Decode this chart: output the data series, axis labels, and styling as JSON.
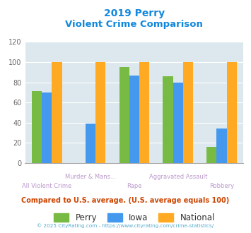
{
  "title_line1": "2019 Perry",
  "title_line2": "Violent Crime Comparison",
  "categories": [
    "All Violent Crime",
    "Murder & Mans...",
    "Rape",
    "Aggravated Assault",
    "Robbery"
  ],
  "perry": [
    71,
    0,
    95,
    86,
    16
  ],
  "iowa": [
    70,
    39,
    87,
    80,
    34
  ],
  "national": [
    100,
    100,
    100,
    100,
    100
  ],
  "perry_color": "#77bb44",
  "iowa_color": "#4499ee",
  "national_color": "#ffaa22",
  "bg_color": "#dde8ee",
  "ylim": [
    0,
    120
  ],
  "yticks": [
    0,
    20,
    40,
    60,
    80,
    100,
    120
  ],
  "footnote": "Compared to U.S. average. (U.S. average equals 100)",
  "copyright": "© 2025 CityRating.com - https://www.cityrating.com/crime-statistics/",
  "title_color": "#1188dd",
  "footnote_color": "#cc4400",
  "copyright_color": "#55aacc",
  "label_color": "#bb99cc",
  "legend_labels": [
    "Perry",
    "Iowa",
    "National"
  ],
  "legend_text_color": "#333333"
}
